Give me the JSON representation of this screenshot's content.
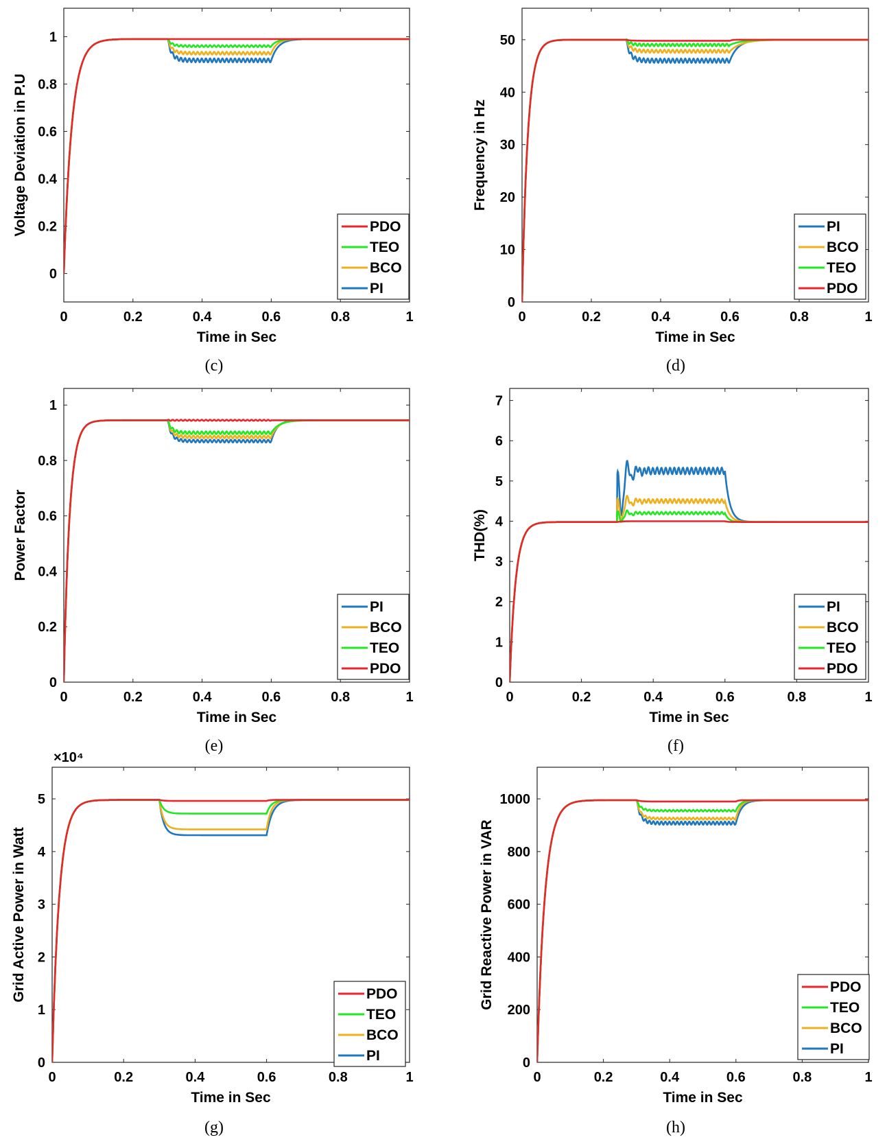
{
  "figure": {
    "panel_labels": [
      "(c)",
      "(d)",
      "(e)",
      "(f)",
      "(g)",
      "(h)"
    ]
  },
  "colors": {
    "PDO": "#e8262b",
    "TEO": "#22e822",
    "BCO": "#edb120",
    "PI": "#1f77bd"
  },
  "chart_data": [
    {
      "id": "c",
      "type": "line",
      "caption": "(c)",
      "xlabel": "Time in Sec",
      "ylabel": "Voltage Deviation in P.U",
      "xlim": [
        0,
        1
      ],
      "ylim": [
        -0.12,
        1.12
      ],
      "xticks": [
        0,
        0.2,
        0.4,
        0.6,
        0.8,
        1
      ],
      "xtick_labels": [
        "0",
        "0.2",
        "0.4",
        "0.6",
        "0.8",
        "1"
      ],
      "yticks": [
        0,
        0.2,
        0.4,
        0.6,
        0.8,
        1
      ],
      "ytick_labels": [
        "0",
        "0.2",
        "0.4",
        "0.6",
        "0.8",
        "1"
      ],
      "legend_order": [
        "PDO",
        "TEO",
        "BCO",
        "PI"
      ],
      "series": [
        {
          "name": "PDO",
          "rise": 0.07,
          "initial": 0,
          "steady": 0.99,
          "dip": 0.99,
          "dip_start": 0.3,
          "dip_end": 0.6,
          "recover": 0.02,
          "ripple": 0,
          "order": 4
        },
        {
          "name": "TEO",
          "rise": 0.07,
          "initial": 0,
          "steady": 0.99,
          "dip": 0.96,
          "dip_start": 0.3,
          "dip_end": 0.6,
          "recover": 0.05,
          "ripple": 0.004,
          "order": 3
        },
        {
          "name": "BCO",
          "rise": 0.07,
          "initial": 0,
          "steady": 0.99,
          "dip": 0.93,
          "dip_start": 0.3,
          "dip_end": 0.6,
          "recover": 0.05,
          "ripple": 0.006,
          "order": 2
        },
        {
          "name": "PI",
          "rise": 0.07,
          "initial": 0,
          "steady": 0.99,
          "dip": 0.9,
          "dip_start": 0.3,
          "dip_end": 0.6,
          "recover": 0.06,
          "ripple": 0.008,
          "order": 1
        }
      ]
    },
    {
      "id": "d",
      "type": "line",
      "caption": "(d)",
      "xlabel": "Time in Sec",
      "ylabel": "Frequency in Hz",
      "xlim": [
        0,
        1
      ],
      "ylim": [
        0,
        56
      ],
      "xticks": [
        0,
        0.2,
        0.4,
        0.6,
        0.8,
        1
      ],
      "xtick_labels": [
        "0",
        "0.2",
        "0.4",
        "0.6",
        "0.8",
        "1"
      ],
      "yticks": [
        0,
        10,
        20,
        30,
        40,
        50
      ],
      "ytick_labels": [
        "0",
        "10",
        "20",
        "30",
        "40",
        "50"
      ],
      "legend_order": [
        "PI",
        "BCO",
        "TEO",
        "PDO"
      ],
      "series": [
        {
          "name": "PI",
          "rise": 0.05,
          "initial": 0,
          "steady": 50,
          "dip": 46,
          "dip_start": 0.3,
          "dip_end": 0.6,
          "recover": 0.07,
          "ripple": 0.4,
          "order": 1
        },
        {
          "name": "BCO",
          "rise": 0.05,
          "initial": 0,
          "steady": 50,
          "dip": 47.8,
          "dip_start": 0.3,
          "dip_end": 0.6,
          "recover": 0.1,
          "ripple": 0.3,
          "order": 2
        },
        {
          "name": "TEO",
          "rise": 0.05,
          "initial": 0,
          "steady": 50,
          "dip": 49,
          "dip_start": 0.3,
          "dip_end": 0.6,
          "recover": 0.1,
          "ripple": 0.25,
          "order": 3
        },
        {
          "name": "PDO",
          "rise": 0.05,
          "initial": 0,
          "steady": 50,
          "dip": 49.8,
          "dip_start": 0.3,
          "dip_end": 0.6,
          "recover": 0.02,
          "ripple": 0,
          "order": 4
        }
      ]
    },
    {
      "id": "e",
      "type": "line",
      "caption": "(e)",
      "xlabel": "Time in Sec",
      "ylabel": "Power Factor",
      "xlim": [
        0,
        1
      ],
      "ylim": [
        0,
        1.06
      ],
      "xticks": [
        0,
        0.2,
        0.4,
        0.6,
        0.8,
        1
      ],
      "xtick_labels": [
        "0",
        "0.2",
        "0.4",
        "0.6",
        "0.8",
        "1"
      ],
      "yticks": [
        0,
        0.2,
        0.4,
        0.6,
        0.8,
        1
      ],
      "ytick_labels": [
        "0",
        "0.2",
        "0.4",
        "0.6",
        "0.8",
        "1"
      ],
      "legend_order": [
        "PI",
        "BCO",
        "TEO",
        "PDO"
      ],
      "series": [
        {
          "name": "PI",
          "rise": 0.05,
          "initial": 0,
          "steady": 0.945,
          "dip": 0.87,
          "dip_start": 0.3,
          "dip_end": 0.6,
          "recover": 0.05,
          "ripple": 0.005,
          "order": 1
        },
        {
          "name": "BCO",
          "rise": 0.05,
          "initial": 0,
          "steady": 0.945,
          "dip": 0.885,
          "dip_start": 0.3,
          "dip_end": 0.6,
          "recover": 0.06,
          "ripple": 0.005,
          "order": 2
        },
        {
          "name": "TEO",
          "rise": 0.05,
          "initial": 0,
          "steady": 0.945,
          "dip": 0.9,
          "dip_start": 0.3,
          "dip_end": 0.6,
          "recover": 0.07,
          "ripple": 0.005,
          "order": 3
        },
        {
          "name": "PDO",
          "rise": 0.05,
          "initial": 0,
          "steady": 0.945,
          "dip": 0.945,
          "dip_start": 0.3,
          "dip_end": 0.6,
          "recover": 0.02,
          "ripple": 0.002,
          "order": 4
        }
      ]
    },
    {
      "id": "f",
      "type": "line",
      "caption": "(f)",
      "xlabel": "Time in Sec",
      "ylabel": "THD(%)",
      "xlim": [
        0,
        1
      ],
      "ylim": [
        0,
        7.3
      ],
      "xticks": [
        0,
        0.2,
        0.4,
        0.6,
        0.8,
        1
      ],
      "xtick_labels": [
        "0",
        "0.2",
        "0.4",
        "0.6",
        "0.8",
        "1"
      ],
      "yticks": [
        0,
        1,
        2,
        3,
        4,
        5,
        6,
        7
      ],
      "ytick_labels": [
        "0",
        "1",
        "2",
        "3",
        "4",
        "5",
        "6",
        "7"
      ],
      "legend_order": [
        "PI",
        "BCO",
        "TEO",
        "PDO"
      ],
      "series": [
        {
          "name": "PI",
          "rise": 0.05,
          "initial": 0,
          "steady": 3.98,
          "dip": 5.25,
          "dip_start": 0.3,
          "dip_end": 0.6,
          "recover": 0.04,
          "ripple": 0.08,
          "overshoot": 1.2,
          "order": 1
        },
        {
          "name": "BCO",
          "rise": 0.05,
          "initial": 0,
          "steady": 3.98,
          "dip": 4.5,
          "dip_start": 0.3,
          "dip_end": 0.6,
          "recover": 0.04,
          "ripple": 0.05,
          "overshoot": 0.55,
          "order": 2
        },
        {
          "name": "TEO",
          "rise": 0.05,
          "initial": 0,
          "steady": 3.98,
          "dip": 4.2,
          "dip_start": 0.3,
          "dip_end": 0.6,
          "recover": 0.03,
          "ripple": 0.03,
          "overshoot": 0.25,
          "order": 3
        },
        {
          "name": "PDO",
          "rise": 0.05,
          "initial": 0,
          "steady": 3.98,
          "dip": 4.0,
          "dip_start": 0.3,
          "dip_end": 0.6,
          "recover": 0.02,
          "ripple": 0,
          "overshoot": 0,
          "order": 4
        }
      ]
    },
    {
      "id": "g",
      "type": "line",
      "caption": "(g)",
      "xlabel": "Time in Sec",
      "ylabel": "Grid Active Power in Watt",
      "exponent_label": "×10⁴",
      "xlim": [
        0,
        1
      ],
      "ylim": [
        0,
        5.6
      ],
      "xticks": [
        0,
        0.2,
        0.4,
        0.6,
        0.8,
        1
      ],
      "xtick_labels": [
        "0",
        "0.2",
        "0.4",
        "0.6",
        "0.8",
        "1"
      ],
      "yticks": [
        0,
        1,
        2,
        3,
        4,
        5
      ],
      "ytick_labels": [
        "0",
        "1",
        "2",
        "3",
        "4",
        "5"
      ],
      "legend_order": [
        "PDO",
        "TEO",
        "BCO",
        "PI"
      ],
      "series": [
        {
          "name": "PDO",
          "rise": 0.06,
          "initial": 0,
          "steady": 4.98,
          "dip": 4.96,
          "dip_start": 0.3,
          "dip_end": 0.6,
          "recover": 0.02,
          "ripple": 0,
          "order": 4
        },
        {
          "name": "TEO",
          "rise": 0.06,
          "initial": 0,
          "steady": 4.98,
          "dip": 4.72,
          "dip_start": 0.3,
          "dip_end": 0.6,
          "recover": 0.04,
          "ripple": 0,
          "order": 3
        },
        {
          "name": "BCO",
          "rise": 0.06,
          "initial": 0,
          "steady": 4.98,
          "dip": 4.42,
          "dip_start": 0.3,
          "dip_end": 0.6,
          "recover": 0.04,
          "ripple": 0,
          "order": 2
        },
        {
          "name": "PI",
          "rise": 0.06,
          "initial": 0,
          "steady": 4.98,
          "dip": 4.31,
          "dip_start": 0.3,
          "dip_end": 0.6,
          "recover": 0.05,
          "ripple": 0,
          "order": 1
        }
      ]
    },
    {
      "id": "h",
      "type": "line",
      "caption": "(h)",
      "xlabel": "Time in Sec",
      "ylabel": "Grid Reactive Power in VAR",
      "xlim": [
        0,
        1
      ],
      "ylim": [
        0,
        1120
      ],
      "xticks": [
        0,
        0.2,
        0.4,
        0.6,
        0.8,
        1
      ],
      "xtick_labels": [
        "0",
        "0.2",
        "0.4",
        "0.6",
        "0.8",
        "1"
      ],
      "yticks": [
        0,
        200,
        400,
        600,
        800,
        1000
      ],
      "ytick_labels": [
        "0",
        "200",
        "400",
        "600",
        "800",
        "1000"
      ],
      "legend_order": [
        "PDO",
        "TEO",
        "BCO",
        "PI"
      ],
      "series": [
        {
          "name": "PDO",
          "rise": 0.07,
          "initial": 0,
          "steady": 995,
          "dip": 990,
          "dip_start": 0.3,
          "dip_end": 0.6,
          "recover": 0.02,
          "ripple": 0,
          "order": 4
        },
        {
          "name": "TEO",
          "rise": 0.07,
          "initial": 0,
          "steady": 995,
          "dip": 955,
          "dip_start": 0.3,
          "dip_end": 0.6,
          "recover": 0.04,
          "ripple": 3,
          "order": 3
        },
        {
          "name": "BCO",
          "rise": 0.07,
          "initial": 0,
          "steady": 995,
          "dip": 925,
          "dip_start": 0.3,
          "dip_end": 0.6,
          "recover": 0.04,
          "ripple": 4,
          "order": 2
        },
        {
          "name": "PI",
          "rise": 0.07,
          "initial": 0,
          "steady": 995,
          "dip": 908,
          "dip_start": 0.3,
          "dip_end": 0.6,
          "recover": 0.05,
          "ripple": 6,
          "order": 1
        }
      ]
    }
  ]
}
